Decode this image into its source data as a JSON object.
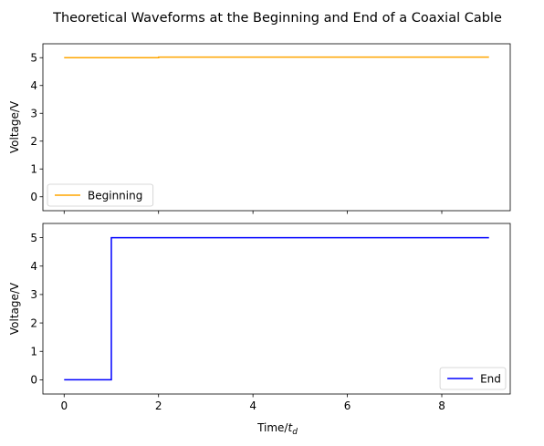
{
  "chart_data": {
    "title": "Theoretical Waveforms at the Beginning and End of a Coaxial Cable",
    "shared_x": true,
    "xlabel": "Time/",
    "xlabel_sub": "d",
    "xlabel_var": "t",
    "xlim": [
      -0.45,
      9.45
    ],
    "xticks": [
      0,
      2,
      4,
      6,
      8
    ],
    "xtick_labels": [
      "0",
      "2",
      "4",
      "6",
      "8"
    ],
    "panels": [
      {
        "type": "line",
        "ylabel": "Voltage/V",
        "ylim": [
          -0.5,
          5.5
        ],
        "yticks": [
          0,
          1,
          2,
          3,
          4,
          5
        ],
        "ytick_labels": [
          "0",
          "1",
          "2",
          "3",
          "4",
          "5"
        ],
        "legend_loc": "lower left",
        "series": [
          {
            "name": "Beginning",
            "color": "#ffa500",
            "step": true,
            "x": [
              0,
              2,
              9
            ],
            "y": [
              5.0,
              5.02,
              5.02
            ]
          }
        ]
      },
      {
        "type": "line",
        "ylabel": "Voltage/V",
        "ylim": [
          -0.5,
          5.5
        ],
        "yticks": [
          0,
          1,
          2,
          3,
          4,
          5
        ],
        "ytick_labels": [
          "0",
          "1",
          "2",
          "3",
          "4",
          "5"
        ],
        "legend_loc": "lower right",
        "series": [
          {
            "name": "End",
            "color": "#0000ff",
            "step": true,
            "x": [
              0,
              1,
              9
            ],
            "y": [
              0,
              5,
              5
            ]
          }
        ]
      }
    ]
  }
}
